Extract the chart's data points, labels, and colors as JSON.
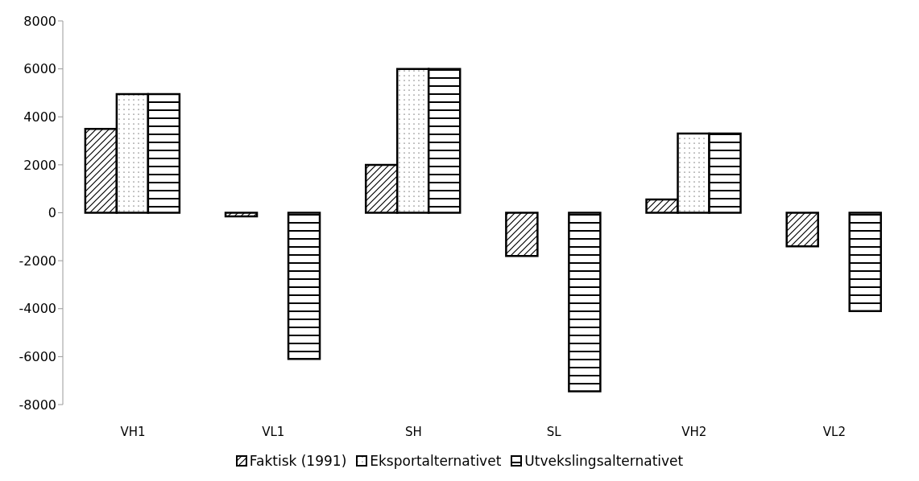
{
  "chart_data": {
    "type": "bar",
    "categories": [
      "VH1",
      "VL1",
      "SH",
      "SL",
      "VH2",
      "VL2"
    ],
    "series": [
      {
        "name": "Faktisk (1991)",
        "color": "#000000",
        "values": [
          3500,
          -150,
          2000,
          -1800,
          550,
          -1400
        ]
      },
      {
        "name": "Eksportalternativet",
        "color": "#000000",
        "values": [
          4950,
          null,
          6000,
          null,
          3300,
          null
        ]
      },
      {
        "name": "Utvekslingsalternativet",
        "color": "#000000",
        "values": [
          4950,
          -6100,
          6000,
          -7450,
          3300,
          -4100
        ]
      }
    ],
    "ylim": [
      -8000,
      8000
    ],
    "yticks": [
      -8000,
      -6000,
      -4000,
      -2000,
      0,
      2000,
      4000,
      6000,
      8000
    ],
    "legend": "bottom"
  }
}
